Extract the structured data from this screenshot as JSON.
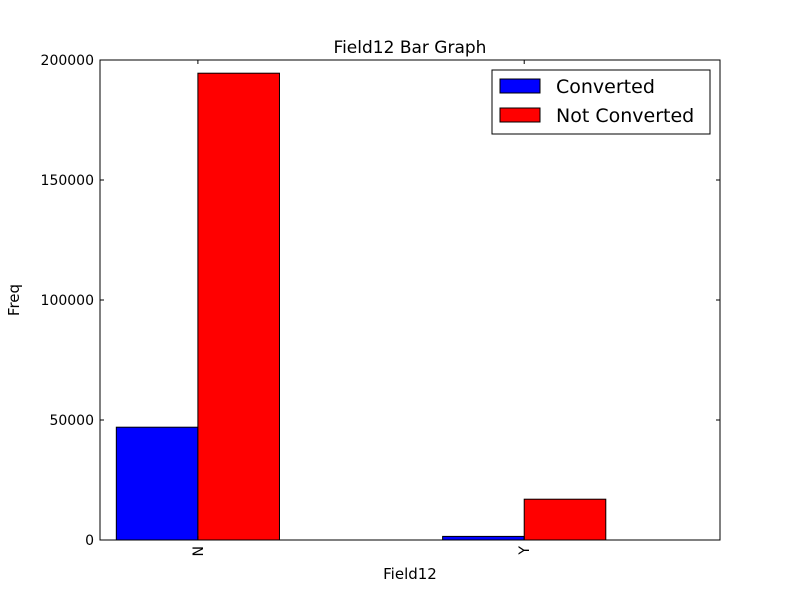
{
  "chart_data": {
    "type": "bar",
    "title": "Field12 Bar Graph",
    "xlabel": "Field12",
    "ylabel": "Freq",
    "categories": [
      "N",
      "Y"
    ],
    "series": [
      {
        "name": "Converted",
        "color": "#0000ff",
        "values": [
          47000,
          1500
        ]
      },
      {
        "name": "Not Converted",
        "color": "#ff0000",
        "values": [
          194500,
          17000
        ]
      }
    ],
    "ylim": [
      0,
      200000
    ],
    "yticks": [
      0,
      50000,
      100000,
      150000,
      200000
    ],
    "ytick_labels": [
      "0",
      "50000",
      "100000",
      "150000",
      "200000"
    ],
    "grid": false,
    "legend_position": "top-right"
  }
}
